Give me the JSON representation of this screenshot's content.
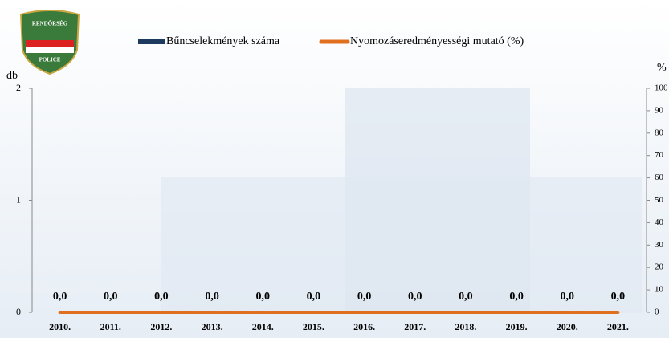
{
  "chart_data": {
    "type": "bar",
    "logo_texts": [
      "RENDŐRSÉG",
      "POLICE"
    ],
    "categories": [
      "2010.",
      "2011.",
      "2012.",
      "2013.",
      "2014.",
      "2015.",
      "2016.",
      "2017.",
      "2018.",
      "2019.",
      "2020.",
      "2021."
    ],
    "series": [
      {
        "name": "Bűncselekmények száma",
        "type": "bar",
        "color": "#1f3a5f",
        "values": [
          0,
          0,
          0,
          0,
          0,
          0,
          0,
          0,
          0,
          0,
          0,
          0
        ],
        "value_labels": [
          "0,0",
          "0,0",
          "0,0",
          "0,0",
          "0,0",
          "0,0",
          "0,0",
          "0,0",
          "0,0",
          "0,0",
          "0,0",
          "0,0"
        ]
      },
      {
        "name": "Nyomozáseredményességi mutató (%)",
        "type": "line",
        "axis": "y2",
        "color": "#e07020",
        "values": [
          0,
          0,
          0,
          0,
          0,
          0,
          0,
          0,
          0,
          0,
          0,
          0
        ]
      }
    ],
    "y_label": "db",
    "y2_label": "%",
    "ylim": [
      0,
      2
    ],
    "yticks": [
      0,
      1,
      2
    ],
    "y2lim": [
      0,
      100
    ],
    "y2ticks": [
      0,
      10,
      20,
      30,
      40,
      50,
      60,
      70,
      80,
      90,
      100
    ]
  }
}
